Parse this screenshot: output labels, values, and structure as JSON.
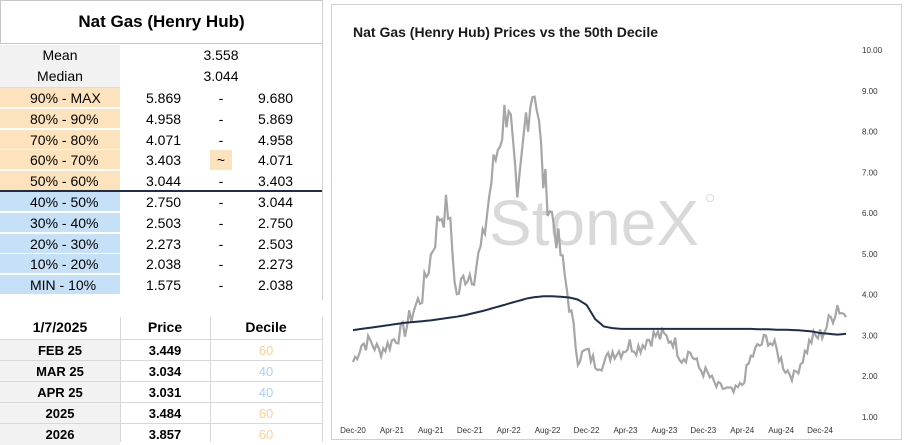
{
  "table": {
    "title": "Nat Gas (Henry Hub)",
    "mean_label": "Mean",
    "mean_value": "3.558",
    "median_label": "Median",
    "median_value": "3.044",
    "deciles": [
      {
        "label": "90% - MAX",
        "low": "5.869",
        "sep": "-",
        "high": "9.680",
        "group": "upper"
      },
      {
        "label": "80% - 90%",
        "low": "4.958",
        "sep": "-",
        "high": "5.869",
        "group": "upper"
      },
      {
        "label": "70% - 80%",
        "low": "4.071",
        "sep": "-",
        "high": "4.958",
        "group": "upper"
      },
      {
        "label": "60% - 70%",
        "low": "3.403",
        "sep": "~",
        "high": "4.071",
        "group": "upper"
      },
      {
        "label": "50% - 60%",
        "low": "3.044",
        "sep": "-",
        "high": "3.403",
        "group": "upper"
      },
      {
        "label": "40% - 50%",
        "low": "2.750",
        "sep": "-",
        "high": "3.044",
        "group": "lower"
      },
      {
        "label": "30% - 40%",
        "low": "2.503",
        "sep": "-",
        "high": "2.750",
        "group": "lower"
      },
      {
        "label": "20% - 30%",
        "low": "2.273",
        "sep": "-",
        "high": "2.503",
        "group": "lower"
      },
      {
        "label": "10% - 20%",
        "low": "2.038",
        "sep": "-",
        "high": "2.273",
        "group": "lower"
      },
      {
        "label": "MIN - 10%",
        "low": "1.575",
        "sep": "-",
        "high": "2.038",
        "group": "lower"
      }
    ]
  },
  "contracts": {
    "date_header": "1/7/2025",
    "price_header": "Price",
    "decile_header": "Decile",
    "rows": [
      {
        "name": "FEB 25",
        "price": "3.449",
        "decile": "60",
        "color": "#f9d29b"
      },
      {
        "name": "MAR 25",
        "price": "3.034",
        "decile": "40",
        "color": "#a9d2f2"
      },
      {
        "name": "APR 25",
        "price": "3.031",
        "decile": "40",
        "color": "#a9d2f2"
      },
      {
        "name": "2025",
        "price": "3.484",
        "decile": "60",
        "color": "#f9d29b"
      },
      {
        "name": "2026",
        "price": "3.857",
        "decile": "60",
        "color": "#f9d29b"
      }
    ]
  },
  "colors": {
    "upper_band": "#fde3bd",
    "lower_band": "#c5e0f7",
    "price_line": "#a6a6a6",
    "decile_line": "#1f2d4d"
  },
  "watermark": "StoneX",
  "chart_data": {
    "type": "line",
    "title": "Nat Gas (Henry Hub) Prices vs the 50th Decile",
    "x_tick_labels": [
      "Dec-20",
      "Apr-21",
      "Aug-21",
      "Dec-21",
      "Apr-22",
      "Aug-22",
      "Dec-22",
      "Apr-23",
      "Aug-23",
      "Dec-23",
      "Apr-24",
      "Aug-24",
      "Dec-24"
    ],
    "y_tick_labels": [
      "1.00",
      "2.00",
      "3.00",
      "4.00",
      "5.00",
      "6.00",
      "7.00",
      "8.00",
      "9.00",
      "10.00"
    ],
    "ylim": [
      1,
      10
    ],
    "y_axis_side": "right",
    "grid": false,
    "series": [
      {
        "values_by_month": [
          2.35,
          2.78,
          2.85,
          2.62,
          2.75,
          2.96,
          3.15,
          3.62,
          4.0,
          4.95,
          5.95,
          6.1,
          3.95,
          4.5,
          4.55,
          5.25,
          6.8,
          7.9,
          8.8,
          6.0,
          8.4,
          9.25,
          6.85,
          5.95,
          5.0,
          3.8,
          2.45,
          2.6,
          2.32,
          2.3,
          2.6,
          2.62,
          2.78,
          2.7,
          2.9,
          3.0,
          2.95,
          2.9,
          2.45,
          2.6,
          2.2,
          2.05,
          1.75,
          1.7,
          1.6,
          1.8,
          2.45,
          2.75,
          2.95,
          2.6,
          2.18,
          2.0,
          2.45,
          2.9,
          3.0,
          3.3,
          3.75,
          3.45
        ]
      },
      {
        "values_by_month": [
          3.13,
          3.16,
          3.19,
          3.22,
          3.25,
          3.28,
          3.31,
          3.33,
          3.35,
          3.37,
          3.4,
          3.43,
          3.46,
          3.5,
          3.55,
          3.6,
          3.66,
          3.72,
          3.78,
          3.84,
          3.9,
          3.94,
          3.96,
          3.96,
          3.95,
          3.93,
          3.88,
          3.75,
          3.4,
          3.22,
          3.18,
          3.16,
          3.16,
          3.16,
          3.16,
          3.16,
          3.16,
          3.16,
          3.16,
          3.16,
          3.16,
          3.16,
          3.16,
          3.16,
          3.16,
          3.16,
          3.16,
          3.15,
          3.15,
          3.14,
          3.14,
          3.13,
          3.12,
          3.1,
          3.06,
          3.04,
          3.02,
          3.04
        ]
      }
    ]
  }
}
